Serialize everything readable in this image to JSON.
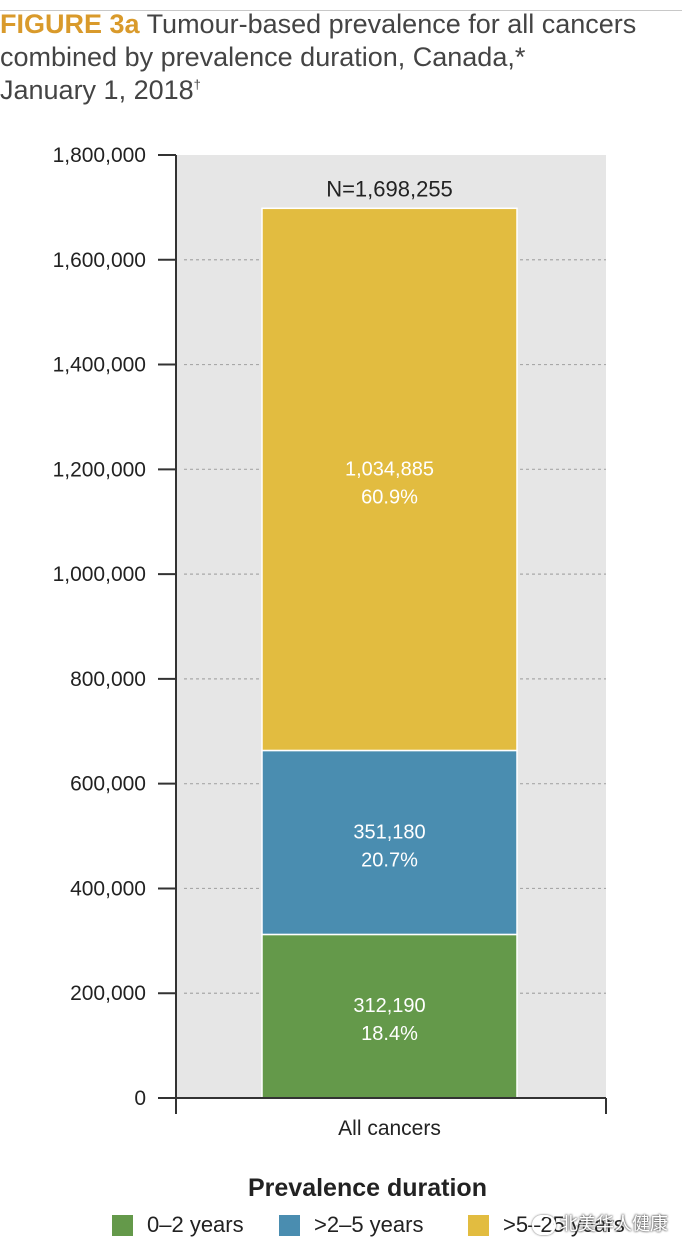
{
  "figure": {
    "label": "FIGURE 3a",
    "title": "Tumour-based prevalence for all cancers combined by prevalence duration, Canada,*",
    "date_line": "January 1, 2018",
    "date_mark": "†"
  },
  "chart_data": {
    "type": "bar",
    "stacked": true,
    "categories": [
      "All cancers"
    ],
    "series": [
      {
        "name": "0–2 years",
        "values": [
          312190
        ],
        "value_label": "312,190",
        "percent_label": "18.4%",
        "color": "#64994a"
      },
      {
        "name": ">2–5 years",
        "values": [
          351180
        ],
        "value_label": "351,180",
        "percent_label": "20.7%",
        "color": "#4a8db0"
      },
      {
        "name": ">5–25 years",
        "values": [
          1034885
        ],
        "value_label": "1,034,885",
        "percent_label": "60.9%",
        "color": "#e2bc40"
      }
    ],
    "total": 1698255,
    "total_label": "N=1,698,255",
    "ylim": [
      0,
      1800000
    ],
    "yticks": [
      0,
      200000,
      400000,
      600000,
      800000,
      1000000,
      1200000,
      1400000,
      1600000,
      1800000
    ],
    "ytick_labels": [
      "0",
      "200,000",
      "400,000",
      "600,000",
      "800,000",
      "1,000,000",
      "1,200,000",
      "1,400,000",
      "1,600,000",
      "1,800,000"
    ],
    "grid": true,
    "xlabel": "",
    "ylabel": "",
    "legend_title": "Prevalence duration",
    "legend_position": "bottom"
  },
  "colors": {
    "plot_background": "#e6e6e6",
    "gridline": "#a8a8a8",
    "axis": "#333333"
  },
  "watermark": {
    "text": "北美华人健康"
  }
}
